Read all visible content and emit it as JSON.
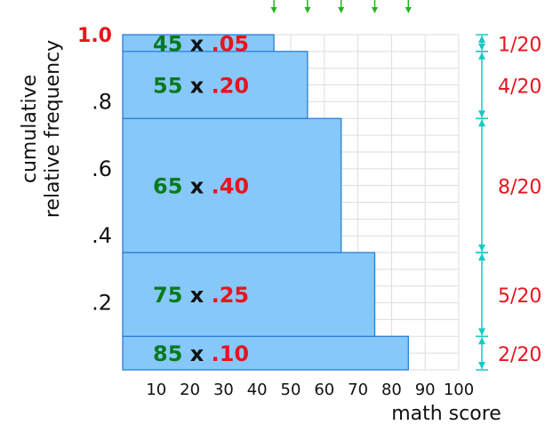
{
  "chart_data": {
    "type": "bar",
    "title": "",
    "xlabel": "math score",
    "ylabel": "cumulative relative frequency",
    "xlim": [
      0,
      100
    ],
    "ylim": [
      0,
      1.0
    ],
    "x_ticks": [
      "10",
      "20",
      "30",
      "40",
      "50",
      "60",
      "70",
      "80",
      "90",
      "100"
    ],
    "y_ticks": [
      {
        "value": 0.2,
        "label": ".2",
        "highlight": false
      },
      {
        "value": 0.4,
        "label": ".4",
        "highlight": false
      },
      {
        "value": 0.6,
        "label": ".6",
        "highlight": false
      },
      {
        "value": 0.8,
        "label": ".8",
        "highlight": false
      },
      {
        "value": 1.0,
        "label": "1.0",
        "highlight": true
      }
    ],
    "grid": true,
    "bars": [
      {
        "score": 85,
        "rel_freq": 0.1,
        "y_start": 0.0,
        "y_end": 0.1,
        "score_label": "85",
        "freq_label": ".10",
        "fraction": "2/20"
      },
      {
        "score": 75,
        "rel_freq": 0.25,
        "y_start": 0.1,
        "y_end": 0.35,
        "score_label": "75",
        "freq_label": ".25",
        "fraction": "5/20"
      },
      {
        "score": 65,
        "rel_freq": 0.4,
        "y_start": 0.35,
        "y_end": 0.75,
        "score_label": "65",
        "freq_label": ".40",
        "fraction": "8/20"
      },
      {
        "score": 55,
        "rel_freq": 0.2,
        "y_start": 0.75,
        "y_end": 0.95,
        "score_label": "55",
        "freq_label": ".20",
        "fraction": "4/20"
      },
      {
        "score": 45,
        "rel_freq": 0.05,
        "y_start": 0.95,
        "y_end": 1.0,
        "score_label": "45",
        "freq_label": ".05",
        "fraction": "1/20"
      }
    ],
    "times_sign": "x",
    "top_arrow_scores": [
      45,
      55,
      65,
      75,
      85
    ]
  },
  "colors": {
    "bar_fill": "#87c8fa",
    "bar_stroke": "#2a7fd4",
    "grid": "#dddddd",
    "score_text": "#0a7a1e",
    "freq_text": "#e8141e",
    "times_text": "#111111",
    "bracket": "#19c8c0",
    "top_arrow": "#22b41e",
    "axis_text": "#111111"
  }
}
